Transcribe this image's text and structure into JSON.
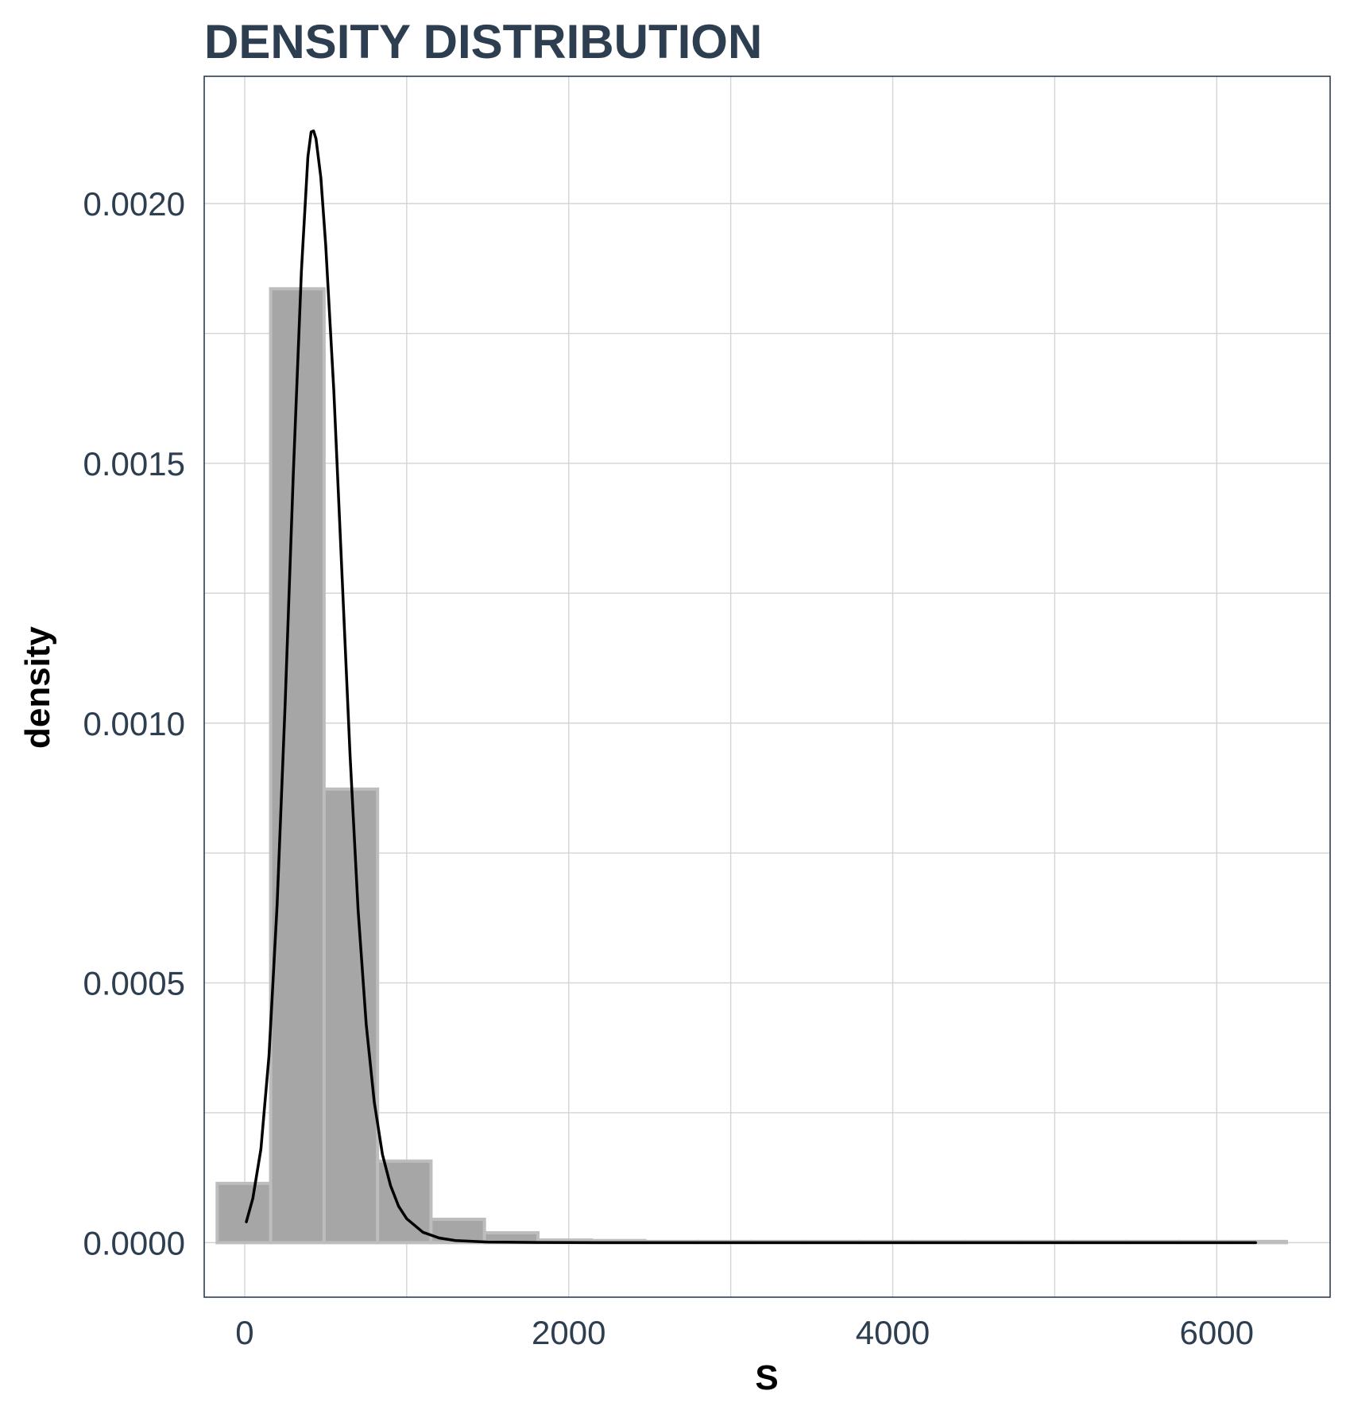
{
  "chart_data": {
    "type": "bar",
    "title": "DENSITY DISTRIBUTION",
    "xlabel": "S",
    "ylabel": "density",
    "xlim": [
      -250,
      6700
    ],
    "ylim": [
      -0.000105,
      0.002245
    ],
    "x_ticks": [
      {
        "value": 0,
        "label": "0"
      },
      {
        "value": 2000,
        "label": "2000"
      },
      {
        "value": 4000,
        "label": "4000"
      },
      {
        "value": 6000,
        "label": "6000"
      }
    ],
    "x_minor_ticks": [
      1000,
      3000,
      5000
    ],
    "y_ticks": [
      {
        "value": 0.0,
        "label": "0.0000"
      },
      {
        "value": 0.0005,
        "label": "0.0005"
      },
      {
        "value": 0.001,
        "label": "0.0010"
      },
      {
        "value": 0.0015,
        "label": "0.0015"
      },
      {
        "value": 0.002,
        "label": "0.0020"
      }
    ],
    "y_minor_ticks": [
      0.00025,
      0.00075,
      0.00125,
      0.00175
    ],
    "grid": true,
    "histogram": {
      "bins": [
        {
          "x0": -170,
          "x1": 160,
          "density": 0.000114
        },
        {
          "x0": 160,
          "x1": 490,
          "density": 0.001836
        },
        {
          "x0": 490,
          "x1": 820,
          "density": 0.000873
        },
        {
          "x0": 820,
          "x1": 1150,
          "density": 0.000157
        },
        {
          "x0": 1150,
          "x1": 1480,
          "density": 4.5e-05
        },
        {
          "x0": 1480,
          "x1": 1810,
          "density": 1.9e-05
        },
        {
          "x0": 1810,
          "x1": 2140,
          "density": 5e-06
        },
        {
          "x0": 2140,
          "x1": 2470,
          "density": 4e-06
        },
        {
          "x0": 2470,
          "x1": 2800,
          "density": 2e-06
        },
        {
          "x0": 2800,
          "x1": 3130,
          "density": 1e-06
        },
        {
          "x0": 3130,
          "x1": 3460,
          "density": 1e-06
        },
        {
          "x0": 3460,
          "x1": 3790,
          "density": 5e-07
        },
        {
          "x0": 3790,
          "x1": 4120,
          "density": 5e-07
        },
        {
          "x0": 4120,
          "x1": 4450,
          "density": 3e-07
        },
        {
          "x0": 4450,
          "x1": 4780,
          "density": 3e-07
        },
        {
          "x0": 4780,
          "x1": 5110,
          "density": 2e-07
        },
        {
          "x0": 5110,
          "x1": 5440,
          "density": 2e-07
        },
        {
          "x0": 5440,
          "x1": 5770,
          "density": 1e-07
        },
        {
          "x0": 5770,
          "x1": 6100,
          "density": 1e-07
        },
        {
          "x0": 6100,
          "x1": 6430,
          "density": 1e-07
        }
      ],
      "fill": "#a6a6a6",
      "stroke": "#bdbdbd"
    },
    "density_curve": {
      "color": "#000000",
      "points": [
        [
          10,
          4e-05
        ],
        [
          50,
          8.5e-05
        ],
        [
          100,
          0.00018
        ],
        [
          150,
          0.00036
        ],
        [
          200,
          0.00065
        ],
        [
          250,
          0.00104
        ],
        [
          300,
          0.00148
        ],
        [
          350,
          0.00187
        ],
        [
          390,
          0.00209
        ],
        [
          410,
          0.002138
        ],
        [
          425,
          0.00214
        ],
        [
          440,
          0.002125
        ],
        [
          470,
          0.00205
        ],
        [
          500,
          0.00192
        ],
        [
          550,
          0.00164
        ],
        [
          600,
          0.00129
        ],
        [
          650,
          0.00094
        ],
        [
          700,
          0.00064
        ],
        [
          750,
          0.00042
        ],
        [
          800,
          0.00027
        ],
        [
          850,
          0.00017
        ],
        [
          900,
          0.00011
        ],
        [
          950,
          7e-05
        ],
        [
          1000,
          4.6e-05
        ],
        [
          1100,
          2e-05
        ],
        [
          1200,
          9e-06
        ],
        [
          1300,
          4e-06
        ],
        [
          1500,
          1.2e-06
        ],
        [
          1800,
          3e-07
        ],
        [
          2200,
          5e-08
        ],
        [
          3000,
          0.0
        ],
        [
          4000,
          0.0
        ],
        [
          5000,
          0.0
        ],
        [
          6240,
          0.0
        ]
      ]
    }
  },
  "colors": {
    "title": "#2c3e50",
    "tick_label": "#2c3e50",
    "axis_title": "#000000",
    "panel_border": "#2c3e50",
    "grid": "#d4d4d4"
  }
}
